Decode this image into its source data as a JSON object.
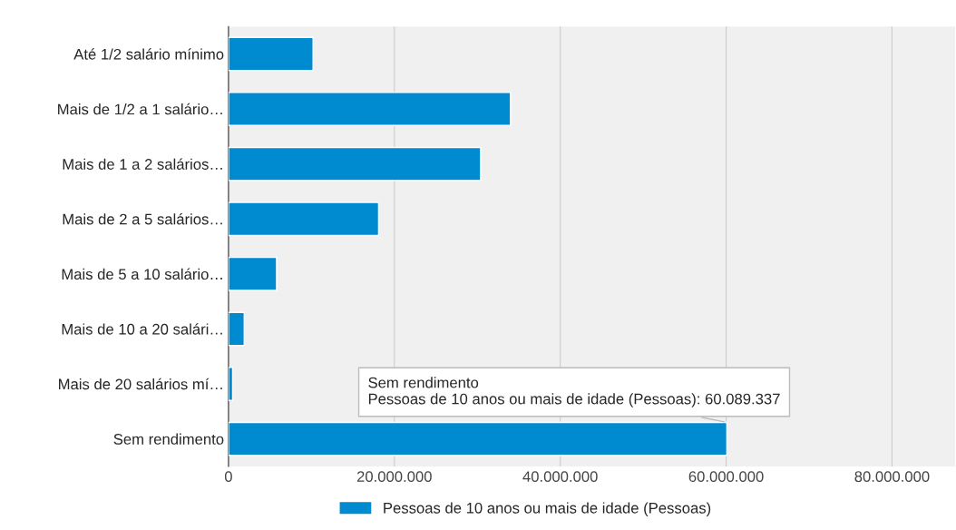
{
  "chart_data": {
    "type": "bar",
    "orientation": "horizontal",
    "categories": [
      "Até 1/2 salário mínimo",
      "Mais de 1/2 a 1 salário…",
      "Mais de 1 a 2 salários…",
      "Mais de 2 a 5 salários…",
      "Mais de 5 a 10 salário…",
      "Mais de 10 a 20 salári…",
      "Mais de 20 salários mí…",
      "Sem rendimento"
    ],
    "series": [
      {
        "name": "Pessoas de 10 anos ou mais de idade (Pessoas)",
        "color": "#008ad0",
        "values": [
          10200000,
          34000000,
          30400000,
          18100000,
          5800000,
          1900000,
          500000,
          60089337
        ]
      }
    ],
    "xlim": [
      0,
      87600000
    ],
    "xticks": [
      0,
      {
        "value": 20000000,
        "label": "20.000.000"
      },
      {
        "value": 40000000,
        "label": "40.000.000"
      },
      {
        "value": 60000000,
        "label": "60.000.000"
      },
      {
        "value": 80000000,
        "label": "80.000.000"
      }
    ],
    "grid": "x",
    "legend": "bottom",
    "annotations": [
      {
        "text": "Sem rendimento\nPessoas de 10 anos ou mais de idade (Pessoas): 60.089.337",
        "x": 60089337,
        "y": "Sem rendimento"
      }
    ]
  }
}
